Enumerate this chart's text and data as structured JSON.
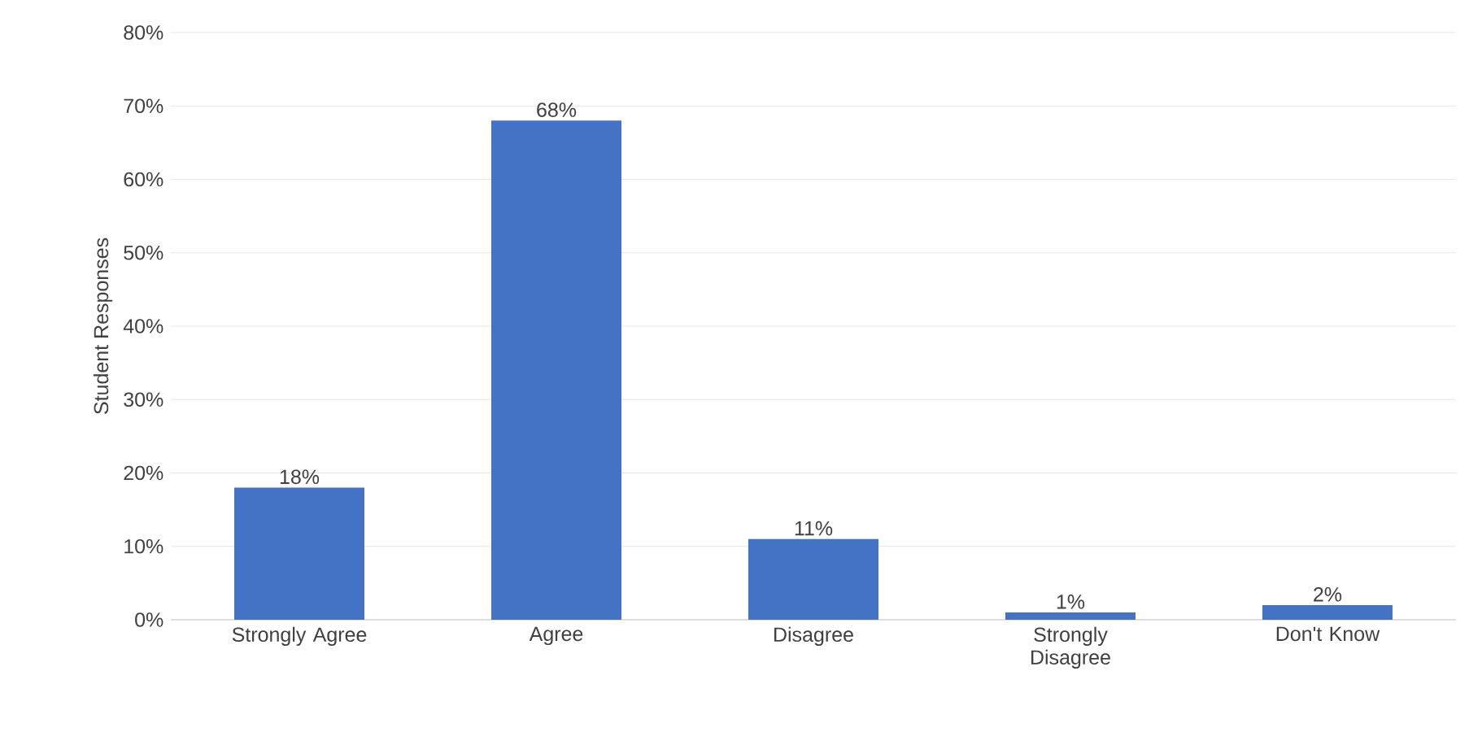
{
  "chart_data": {
    "type": "bar",
    "ylabel": "Student Responses",
    "categories": [
      "Strongly Agree",
      "Agree",
      "Disagree",
      "Strongly Disagree",
      "Don't Know"
    ],
    "values": [
      18,
      68,
      11,
      1,
      2
    ],
    "value_labels": [
      "18%",
      "68%",
      "11%",
      "1%",
      "2%"
    ],
    "color": "#4472c4",
    "ylim": [
      0,
      80
    ],
    "yticks": [
      {
        "value": 0,
        "label": "0%"
      },
      {
        "value": 10,
        "label": "10%"
      },
      {
        "value": 20,
        "label": "20%"
      },
      {
        "value": 30,
        "label": "30%"
      },
      {
        "value": 40,
        "label": "40%"
      },
      {
        "value": 50,
        "label": "50%"
      },
      {
        "value": 60,
        "label": "60%"
      },
      {
        "value": 70,
        "label": "70%"
      },
      {
        "value": 80,
        "label": "80%"
      }
    ],
    "grid": "y"
  }
}
